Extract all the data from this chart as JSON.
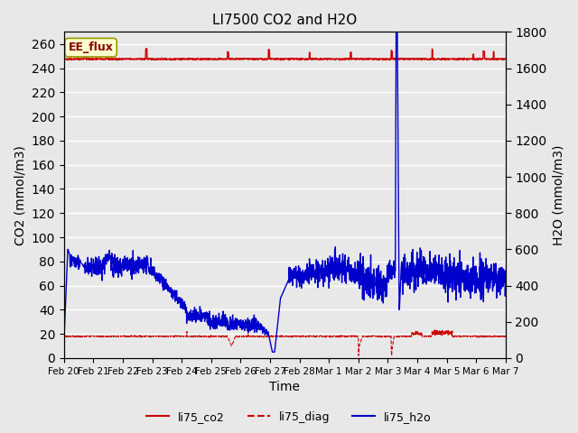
{
  "title": "LI7500 CO2 and H2O",
  "xlabel": "Time",
  "ylabel_left": "CO2 (mmol/m3)",
  "ylabel_right": "H2O (mmol/m3)",
  "ylim_left": [
    0,
    270
  ],
  "ylim_right": [
    0,
    1800
  ],
  "yticks_left": [
    0,
    20,
    40,
    60,
    80,
    100,
    120,
    140,
    160,
    180,
    200,
    220,
    240,
    260
  ],
  "yticks_right": [
    0,
    200,
    400,
    600,
    800,
    1000,
    1200,
    1400,
    1600,
    1800
  ],
  "xticklabels": [
    "Feb 20",
    "Feb 21",
    "Feb 22",
    "Feb 23",
    "Feb 24",
    "Feb 25",
    "Feb 26",
    "Feb 27",
    "Feb 28",
    "Mar 1",
    "Mar 2",
    "Mar 3",
    "Mar 4",
    "Mar 5",
    "Mar 6",
    "Mar 7"
  ],
  "color_co2": "#cc0000",
  "color_diag": "#cc0000",
  "color_h2o": "#0000cc",
  "background_color": "#e8e8e8",
  "plot_bg_color": "#e8e8e8",
  "grid_color": "#ffffff",
  "annotation_text": "EE_flux",
  "annotation_bbox_color": "#ffffcc",
  "annotation_bbox_edge": "#999900",
  "legend_labels": [
    "li75_co2",
    "li75_diag",
    "li75_h2o"
  ],
  "legend_colors": [
    "#cc0000",
    "#cc0000",
    "#0000cc"
  ],
  "legend_linestyles": [
    "-",
    "--",
    "-"
  ],
  "n_days": 15,
  "seed": 42
}
